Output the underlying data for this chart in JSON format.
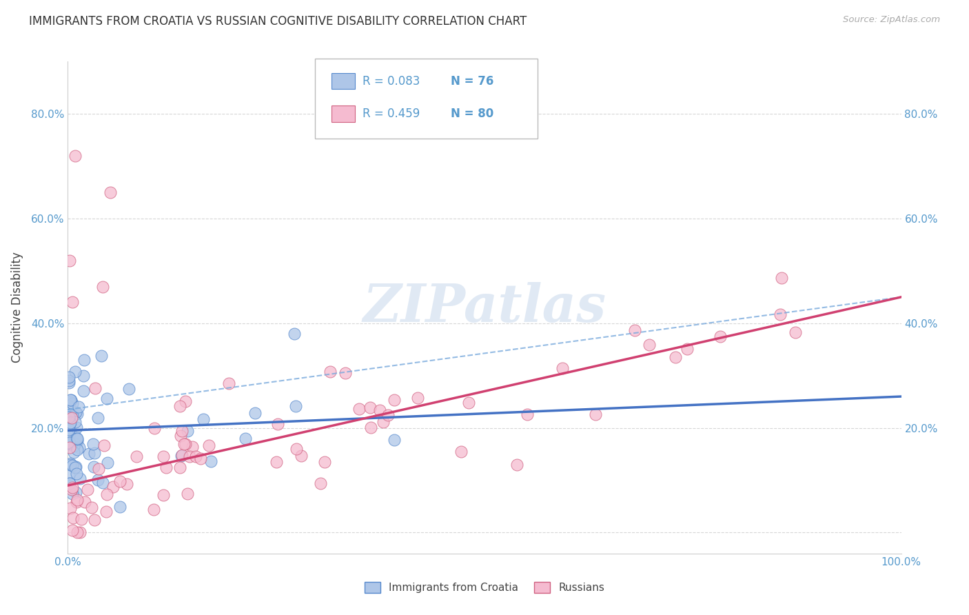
{
  "title": "IMMIGRANTS FROM CROATIA VS RUSSIAN COGNITIVE DISABILITY CORRELATION CHART",
  "source": "Source: ZipAtlas.com",
  "ylabel": "Cognitive Disability",
  "xlim": [
    0,
    1.0
  ],
  "ylim": [
    -0.04,
    0.9
  ],
  "yticks": [
    0.0,
    0.2,
    0.4,
    0.6,
    0.8
  ],
  "ytick_labels": [
    "",
    "20.0%",
    "40.0%",
    "60.0%",
    "80.0%"
  ],
  "xtick_labels": [
    "0.0%",
    "",
    "",
    "",
    "",
    "100.0%"
  ],
  "legend_R": [
    0.083,
    0.459
  ],
  "legend_N": [
    76,
    80
  ],
  "blue_color": "#aec6e8",
  "blue_edge": "#5588cc",
  "blue_line": "#4472c4",
  "blue_dash": "#7aaadd",
  "pink_color": "#f5bbd0",
  "pink_edge": "#d06080",
  "pink_line": "#d04070",
  "background_color": "#ffffff",
  "grid_color": "#cccccc",
  "watermark": "ZIPatlas",
  "trend_blue_slope": 0.065,
  "trend_blue_intercept": 0.195,
  "trend_pink_slope": 0.36,
  "trend_pink_intercept": 0.09,
  "seed": 42
}
